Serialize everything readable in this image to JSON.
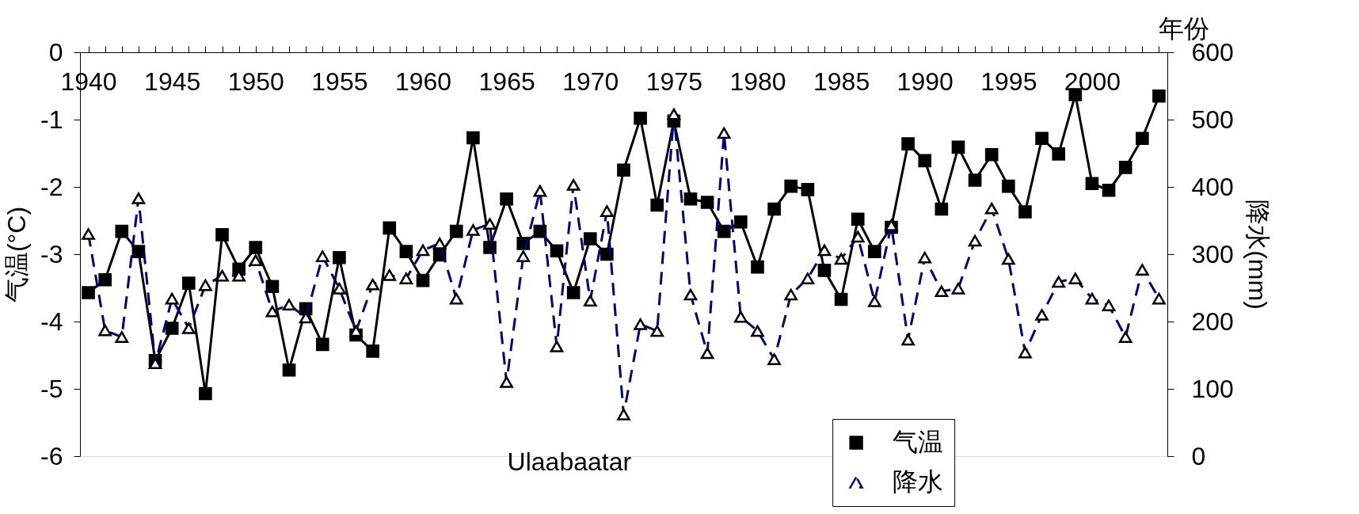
{
  "chart_data": {
    "type": "line",
    "xlabel": "年份",
    "ylabel": "气温(°C)",
    "y2label": "降水(mm)",
    "annotations": [
      "Ulaabaatar"
    ],
    "x": [
      1940,
      1941,
      1942,
      1943,
      1944,
      1945,
      1946,
      1947,
      1948,
      1949,
      1950,
      1951,
      1952,
      1953,
      1954,
      1955,
      1956,
      1957,
      1958,
      1959,
      1960,
      1961,
      1962,
      1963,
      1964,
      1965,
      1966,
      1967,
      1968,
      1969,
      1970,
      1971,
      1972,
      1973,
      1974,
      1975,
      1976,
      1977,
      1978,
      1979,
      1980,
      1981,
      1982,
      1983,
      1984,
      1985,
      1986,
      1987,
      1988,
      1989,
      1990,
      1991,
      1992,
      1993,
      1994,
      1995,
      1996,
      1997,
      1998,
      1999,
      2000,
      2001,
      2002,
      2003,
      2004
    ],
    "series": [
      {
        "name": "气温",
        "color": "#000000",
        "marker": "square",
        "line_style": "solid",
        "values": [
          -3.57,
          -3.38,
          -2.66,
          -2.96,
          -4.58,
          -4.1,
          -3.43,
          -5.07,
          -2.71,
          -3.22,
          -2.9,
          -3.48,
          -4.72,
          -3.81,
          -4.34,
          -3.05,
          -4.2,
          -4.44,
          -2.61,
          -2.96,
          -3.39,
          -3.01,
          -2.66,
          -1.27,
          -2.9,
          -2.18,
          -2.84,
          -2.66,
          -2.95,
          -3.57,
          -2.77,
          -3.0,
          -1.75,
          -0.98,
          -2.27,
          -1.02,
          -2.18,
          -2.23,
          -2.66,
          -2.52,
          -3.19,
          -2.33,
          -1.99,
          -2.04,
          -3.24,
          -3.67,
          -2.48,
          -2.96,
          -2.6,
          -1.36,
          -1.61,
          -2.33,
          -1.41,
          -1.9,
          -1.52,
          -1.99,
          -2.37,
          -1.28,
          -1.51,
          -0.63,
          -1.95,
          -2.05,
          -1.71,
          -1.28,
          -0.65
        ]
      },
      {
        "name": "降水",
        "color": "#000080",
        "marker": "triangle",
        "line_style": "dashed",
        "axis": "y2",
        "values": [
          330,
          187,
          177,
          383,
          138,
          234,
          190,
          254,
          268,
          268,
          291,
          215,
          225,
          206,
          297,
          249,
          186,
          255,
          269,
          264,
          306,
          316,
          234,
          336,
          345,
          110,
          297,
          394,
          163,
          403,
          231,
          364,
          62,
          196,
          186,
          508,
          240,
          153,
          480,
          207,
          186,
          144,
          240,
          264,
          306,
          293,
          326,
          230,
          343,
          173,
          295,
          245,
          249,
          320,
          368,
          293,
          154,
          210,
          259,
          264,
          234,
          224,
          177,
          277,
          234
        ]
      }
    ],
    "xlim": [
      1939.5,
      2004.5
    ],
    "xticks": [
      1940,
      {
        "value": 1941,
        "label": null
      },
      {
        "value": 1942,
        "label": null
      },
      {
        "value": 1943,
        "label": null
      },
      {
        "value": 1944,
        "label": null
      },
      1945,
      {
        "value": 1946,
        "label": null
      },
      {
        "value": 1947,
        "label": null
      },
      {
        "value": 1948,
        "label": null
      },
      {
        "value": 1949,
        "label": null
      },
      1950,
      {
        "value": 1951,
        "label": null
      },
      {
        "value": 1952,
        "label": null
      },
      {
        "value": 1953,
        "label": null
      },
      {
        "value": 1954,
        "label": null
      },
      1955,
      {
        "value": 1956,
        "label": null
      },
      {
        "value": 1957,
        "label": null
      },
      {
        "value": 1958,
        "label": null
      },
      {
        "value": 1959,
        "label": null
      },
      1960,
      {
        "value": 1961,
        "label": null
      },
      {
        "value": 1962,
        "label": null
      },
      {
        "value": 1963,
        "label": null
      },
      {
        "value": 1964,
        "label": null
      },
      1965,
      {
        "value": 1966,
        "label": null
      },
      {
        "value": 1967,
        "label": null
      },
      {
        "value": 1968,
        "label": null
      },
      {
        "value": 1969,
        "label": null
      },
      1970,
      {
        "value": 1971,
        "label": null
      },
      {
        "value": 1972,
        "label": null
      },
      {
        "value": 1973,
        "label": null
      },
      {
        "value": 1974,
        "label": null
      },
      1975,
      {
        "value": 1976,
        "label": null
      },
      {
        "value": 1977,
        "label": null
      },
      {
        "value": 1978,
        "label": null
      },
      {
        "value": 1979,
        "label": null
      },
      1980,
      {
        "value": 1981,
        "label": null
      },
      {
        "value": 1982,
        "label": null
      },
      {
        "value": 1983,
        "label": null
      },
      {
        "value": 1984,
        "label": null
      },
      1985,
      {
        "value": 1986,
        "label": null
      },
      {
        "value": 1987,
        "label": null
      },
      {
        "value": 1988,
        "label": null
      },
      {
        "value": 1989,
        "label": null
      },
      1990,
      {
        "value": 1991,
        "label": null
      },
      {
        "value": 1992,
        "label": null
      },
      {
        "value": 1993,
        "label": null
      },
      {
        "value": 1994,
        "label": null
      },
      1995,
      {
        "value": 1996,
        "label": null
      },
      {
        "value": 1997,
        "label": null
      },
      {
        "value": 1998,
        "label": null
      },
      {
        "value": 1999,
        "label": null
      },
      2000,
      {
        "value": 2001,
        "label": null
      },
      {
        "value": 2002,
        "label": null
      },
      {
        "value": 2003,
        "label": null
      },
      {
        "value": 2004,
        "label": null
      }
    ],
    "ylim": [
      -6,
      0
    ],
    "yticks": [
      -6,
      -5,
      -4,
      -3,
      -2,
      -1,
      0
    ],
    "y2lim": [
      0,
      600
    ],
    "y2ticks": [
      0,
      100,
      200,
      300,
      400,
      500,
      600
    ],
    "grid": false,
    "legend": "bottom right"
  }
}
